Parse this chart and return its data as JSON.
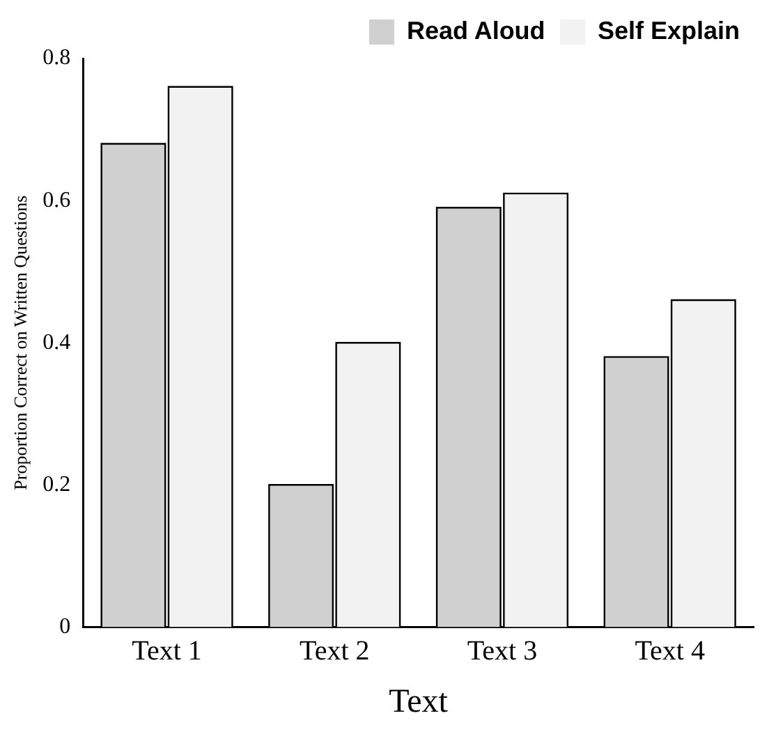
{
  "chart_data": {
    "type": "bar",
    "xlabel": "Text",
    "ylabel": "Proportion Correct on Written Questions",
    "categories": [
      "Text 1",
      "Text 2",
      "Text 3",
      "Text 4"
    ],
    "series": [
      {
        "name": "Read Aloud",
        "color": "#d0d0d0",
        "values": [
          0.68,
          0.2,
          0.59,
          0.38
        ]
      },
      {
        "name": "Self Explain",
        "color": "#f2f2f2",
        "values": [
          0.76,
          0.4,
          0.61,
          0.46
        ]
      }
    ],
    "ylim": [
      0,
      0.8
    ],
    "yticks": [
      0,
      0.2,
      0.4,
      0.6,
      0.8
    ],
    "legend": "top right"
  }
}
